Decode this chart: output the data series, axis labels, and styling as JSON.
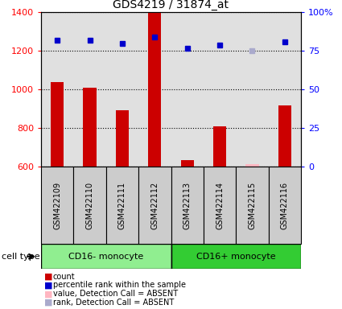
{
  "title": "GDS4219 / 31874_at",
  "samples": [
    "GSM422109",
    "GSM422110",
    "GSM422111",
    "GSM422112",
    "GSM422113",
    "GSM422114",
    "GSM422115",
    "GSM422116"
  ],
  "count_values": [
    1040,
    1010,
    895,
    1400,
    635,
    810,
    null,
    920
  ],
  "count_absent": [
    null,
    null,
    null,
    null,
    null,
    null,
    615,
    null
  ],
  "rank_values": [
    82,
    82,
    80,
    84,
    77,
    79,
    null,
    81
  ],
  "rank_absent": [
    null,
    null,
    null,
    null,
    null,
    null,
    75,
    null
  ],
  "ylim_left": [
    600,
    1400
  ],
  "ylim_right": [
    0,
    100
  ],
  "yticks_left": [
    600,
    800,
    1000,
    1200,
    1400
  ],
  "yticks_right": [
    0,
    25,
    50,
    75,
    100
  ],
  "group1_label": "CD16- monocyte",
  "group2_label": "CD16+ monocyte",
  "group1_indices": [
    0,
    1,
    2,
    3
  ],
  "group2_indices": [
    4,
    5,
    6,
    7
  ],
  "group1_color": "#90EE90",
  "group2_color": "#33CC33",
  "bar_color": "#CC0000",
  "bar_absent_color": "#FFB6C1",
  "dot_color": "#0000CC",
  "dot_absent_color": "#AAAACC",
  "cell_type_label": "cell type",
  "sample_box_color": "#CCCCCC",
  "legend_items": [
    {
      "label": "count",
      "color": "#CC0000"
    },
    {
      "label": "percentile rank within the sample",
      "color": "#0000CC"
    },
    {
      "label": "value, Detection Call = ABSENT",
      "color": "#FFB6C1"
    },
    {
      "label": "rank, Detection Call = ABSENT",
      "color": "#AAAACC"
    }
  ]
}
